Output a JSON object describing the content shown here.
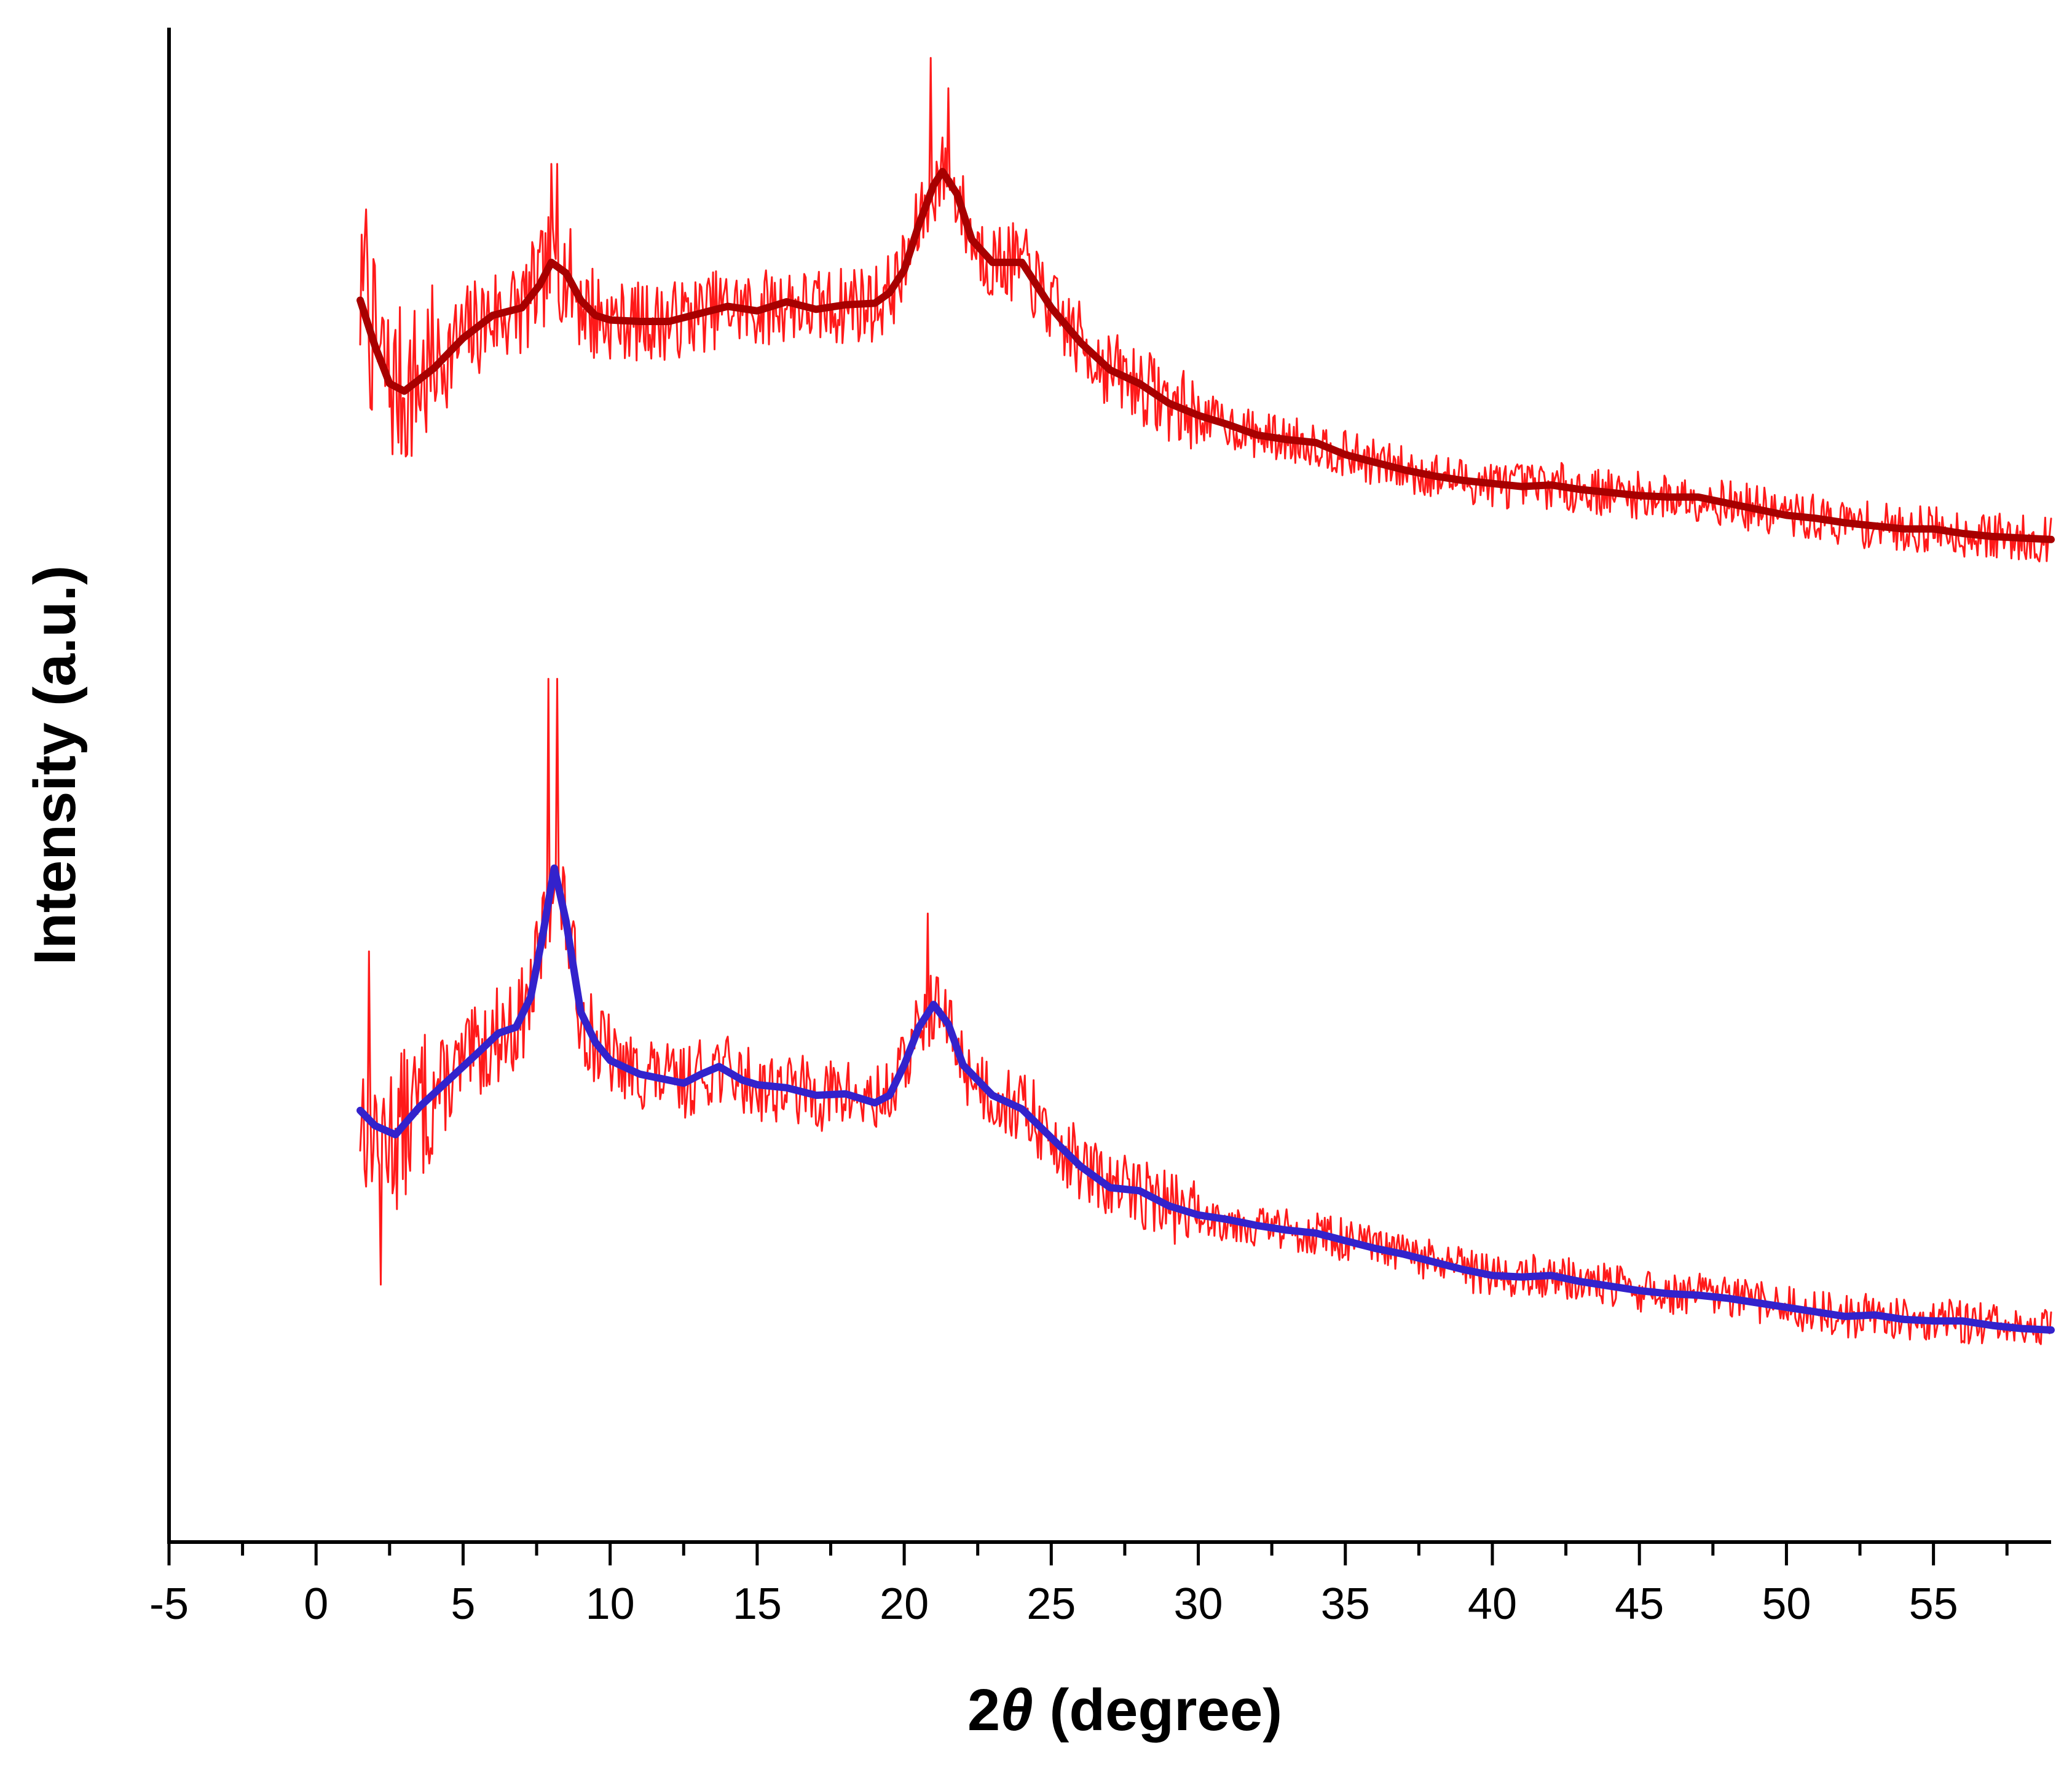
{
  "chart_data": {
    "type": "line",
    "title": "",
    "xlabel_prefix": "2",
    "xlabel_symbol": "θ",
    "xlabel_suffix": " (degree)",
    "ylabel": "Intensity (a.u.)",
    "xlim": [
      -5,
      59
    ],
    "ylim": [
      0,
      100
    ],
    "x_ticks": [
      -5,
      0,
      5,
      10,
      15,
      20,
      25,
      30,
      35,
      40,
      45,
      50,
      55
    ],
    "x_tick_labels": [
      "-5",
      "0",
      "5",
      "10",
      "15",
      "20",
      "25",
      "30",
      "35",
      "40",
      "45",
      "50",
      "55"
    ],
    "y_ticks_shown": false,
    "grid": false,
    "legend": "none",
    "colors": {
      "raw": "#ff1a1a",
      "upper_smooth": "#a80000",
      "lower_smooth": "#3322cc"
    },
    "series": [
      {
        "name": "upper-raw",
        "style": "raw",
        "x_start": 1.5,
        "x_end": 59,
        "noise": 3.5,
        "seed": 7,
        "spikes": [
          [
            1.7,
            88
          ],
          [
            8.0,
            91
          ],
          [
            8.2,
            91
          ],
          [
            20.9,
            98
          ],
          [
            21.5,
            96
          ],
          [
            18.3,
            84
          ],
          [
            42.1,
            70
          ]
        ],
        "points": [
          [
            1.5,
            82
          ],
          [
            2.0,
            79
          ],
          [
            2.5,
            76.5
          ],
          [
            3.0,
            76
          ],
          [
            4,
            77.5
          ],
          [
            5,
            79.5
          ],
          [
            6,
            81
          ],
          [
            7,
            81.5
          ],
          [
            7.6,
            83
          ],
          [
            8.0,
            84.5
          ],
          [
            8.5,
            83.8
          ],
          [
            9.0,
            82
          ],
          [
            9.5,
            81
          ],
          [
            10,
            80.7
          ],
          [
            11,
            80.6
          ],
          [
            12,
            80.6
          ],
          [
            13,
            81.1
          ],
          [
            14,
            81.6
          ],
          [
            15,
            81.3
          ],
          [
            16,
            81.9
          ],
          [
            17,
            81.4
          ],
          [
            18,
            81.7
          ],
          [
            19,
            81.8
          ],
          [
            19.5,
            82.5
          ],
          [
            20,
            84
          ],
          [
            20.5,
            87
          ],
          [
            21.0,
            89.6
          ],
          [
            21.3,
            90.5
          ],
          [
            21.8,
            89
          ],
          [
            22.3,
            86
          ],
          [
            23,
            84.5
          ],
          [
            24,
            84.5
          ],
          [
            25,
            81.5
          ],
          [
            26,
            79.2
          ],
          [
            27,
            77.4
          ],
          [
            28,
            76.5
          ],
          [
            29,
            75.2
          ],
          [
            30,
            74.4
          ],
          [
            31,
            73.8
          ],
          [
            32,
            73.1
          ],
          [
            33,
            72.8
          ],
          [
            34,
            72.6
          ],
          [
            35,
            71.8
          ],
          [
            36,
            71.3
          ],
          [
            37,
            70.8
          ],
          [
            38,
            70.4
          ],
          [
            39,
            70.1
          ],
          [
            40,
            69.9
          ],
          [
            41,
            69.7
          ],
          [
            42,
            69.8
          ],
          [
            43,
            69.5
          ],
          [
            44,
            69.3
          ],
          [
            45,
            69.1
          ],
          [
            46,
            69.0
          ],
          [
            47,
            69.0
          ],
          [
            48,
            68.6
          ],
          [
            49,
            68.2
          ],
          [
            50,
            67.8
          ],
          [
            51,
            67.6
          ],
          [
            52,
            67.3
          ],
          [
            53,
            67.1
          ],
          [
            54,
            66.9
          ],
          [
            55,
            66.9
          ],
          [
            56,
            66.6
          ],
          [
            57,
            66.4
          ],
          [
            58,
            66.3
          ],
          [
            59,
            66.2
          ]
        ]
      },
      {
        "name": "upper-smoothed",
        "style": "smooth",
        "points": [
          [
            1.5,
            82
          ],
          [
            2.0,
            79
          ],
          [
            2.5,
            76.5
          ],
          [
            3.0,
            76
          ],
          [
            4,
            77.5
          ],
          [
            5,
            79.5
          ],
          [
            6,
            81
          ],
          [
            7,
            81.5
          ],
          [
            7.6,
            83
          ],
          [
            8.0,
            84.5
          ],
          [
            8.5,
            83.8
          ],
          [
            9.0,
            82
          ],
          [
            9.5,
            81
          ],
          [
            10,
            80.7
          ],
          [
            11,
            80.6
          ],
          [
            12,
            80.6
          ],
          [
            13,
            81.1
          ],
          [
            14,
            81.6
          ],
          [
            15,
            81.3
          ],
          [
            16,
            81.9
          ],
          [
            17,
            81.4
          ],
          [
            18,
            81.7
          ],
          [
            19,
            81.8
          ],
          [
            19.5,
            82.5
          ],
          [
            20,
            84
          ],
          [
            20.5,
            87
          ],
          [
            21.0,
            89.6
          ],
          [
            21.3,
            90.5
          ],
          [
            21.8,
            89
          ],
          [
            22.3,
            86
          ],
          [
            23,
            84.5
          ],
          [
            24,
            84.5
          ],
          [
            25,
            81.5
          ],
          [
            26,
            79.2
          ],
          [
            27,
            77.4
          ],
          [
            28,
            76.5
          ],
          [
            29,
            75.2
          ],
          [
            30,
            74.4
          ],
          [
            31,
            73.8
          ],
          [
            32,
            73.1
          ],
          [
            33,
            72.8
          ],
          [
            34,
            72.6
          ],
          [
            35,
            71.8
          ],
          [
            36,
            71.3
          ],
          [
            37,
            70.8
          ],
          [
            38,
            70.4
          ],
          [
            39,
            70.1
          ],
          [
            40,
            69.9
          ],
          [
            41,
            69.7
          ],
          [
            42,
            69.8
          ],
          [
            43,
            69.5
          ],
          [
            44,
            69.3
          ],
          [
            45,
            69.1
          ],
          [
            46,
            69.0
          ],
          [
            47,
            69.0
          ],
          [
            48,
            68.6
          ],
          [
            49,
            68.2
          ],
          [
            50,
            67.8
          ],
          [
            51,
            67.6
          ],
          [
            52,
            67.3
          ],
          [
            53,
            67.1
          ],
          [
            54,
            66.9
          ],
          [
            55,
            66.9
          ],
          [
            56,
            66.6
          ],
          [
            57,
            66.4
          ],
          [
            58,
            66.3
          ],
          [
            59,
            66.2
          ]
        ]
      },
      {
        "name": "lower-raw",
        "style": "raw",
        "x_start": 1.5,
        "x_end": 59,
        "noise": 3.2,
        "seed": 13,
        "spikes": [
          [
            1.8,
            39
          ],
          [
            2.2,
            17
          ],
          [
            7.9,
            57
          ],
          [
            8.2,
            57
          ],
          [
            20.8,
            41.5
          ],
          [
            11.4,
            33
          ],
          [
            13.6,
            32.5
          ],
          [
            24.4,
            30.5
          ]
        ],
        "points": [
          [
            1.5,
            28.5
          ],
          [
            2.0,
            27.5
          ],
          [
            2.7,
            26.9
          ],
          [
            3.5,
            28.7
          ],
          [
            4.5,
            30.5
          ],
          [
            5.5,
            32.3
          ],
          [
            6.2,
            33.6
          ],
          [
            6.8,
            34
          ],
          [
            7.3,
            36
          ],
          [
            7.7,
            40
          ],
          [
            8.1,
            44.5
          ],
          [
            8.5,
            41
          ],
          [
            9.0,
            35
          ],
          [
            9.5,
            33
          ],
          [
            10,
            31.8
          ],
          [
            11,
            30.9
          ],
          [
            12,
            30.5
          ],
          [
            12.5,
            30.3
          ],
          [
            13.1,
            30.9
          ],
          [
            13.7,
            31.4
          ],
          [
            14.5,
            30.5
          ],
          [
            15,
            30.2
          ],
          [
            16,
            30.0
          ],
          [
            17,
            29.5
          ],
          [
            18,
            29.6
          ],
          [
            19,
            29.0
          ],
          [
            19.5,
            29.5
          ],
          [
            20,
            31.5
          ],
          [
            20.5,
            34
          ],
          [
            21.0,
            35.5
          ],
          [
            21.5,
            34.2
          ],
          [
            22,
            31.5
          ],
          [
            23,
            29.5
          ],
          [
            24,
            28.6
          ],
          [
            25,
            26.7
          ],
          [
            26,
            24.8
          ],
          [
            27,
            23.4
          ],
          [
            28,
            23.2
          ],
          [
            29,
            22.2
          ],
          [
            30,
            21.6
          ],
          [
            31,
            21.3
          ],
          [
            32,
            20.9
          ],
          [
            33,
            20.6
          ],
          [
            34,
            20.4
          ],
          [
            35,
            19.9
          ],
          [
            36,
            19.4
          ],
          [
            37,
            19.0
          ],
          [
            38,
            18.5
          ],
          [
            39,
            18.0
          ],
          [
            40,
            17.6
          ],
          [
            41,
            17.5
          ],
          [
            42,
            17.6
          ],
          [
            43,
            17.2
          ],
          [
            44,
            16.9
          ],
          [
            45,
            16.6
          ],
          [
            46,
            16.4
          ],
          [
            47,
            16.3
          ],
          [
            48,
            16.1
          ],
          [
            49,
            15.8
          ],
          [
            50,
            15.5
          ],
          [
            51,
            15.2
          ],
          [
            52,
            14.9
          ],
          [
            53,
            15.0
          ],
          [
            54,
            14.7
          ],
          [
            55,
            14.6
          ],
          [
            56,
            14.6
          ],
          [
            57,
            14.3
          ],
          [
            58,
            14.1
          ],
          [
            59,
            14.0
          ]
        ]
      },
      {
        "name": "lower-smoothed",
        "style": "smooth-blue",
        "points": [
          [
            1.5,
            28.5
          ],
          [
            2.0,
            27.5
          ],
          [
            2.7,
            26.9
          ],
          [
            3.5,
            28.7
          ],
          [
            4.5,
            30.5
          ],
          [
            5.5,
            32.3
          ],
          [
            6.2,
            33.6
          ],
          [
            6.8,
            34
          ],
          [
            7.3,
            36
          ],
          [
            7.7,
            40
          ],
          [
            8.1,
            44.5
          ],
          [
            8.5,
            41
          ],
          [
            9.0,
            35
          ],
          [
            9.5,
            33
          ],
          [
            10,
            31.8
          ],
          [
            11,
            30.9
          ],
          [
            12,
            30.5
          ],
          [
            12.5,
            30.3
          ],
          [
            13.1,
            30.9
          ],
          [
            13.7,
            31.4
          ],
          [
            14.5,
            30.5
          ],
          [
            15,
            30.2
          ],
          [
            16,
            30.0
          ],
          [
            17,
            29.5
          ],
          [
            18,
            29.6
          ],
          [
            19,
            29.0
          ],
          [
            19.5,
            29.5
          ],
          [
            20,
            31.5
          ],
          [
            20.5,
            34
          ],
          [
            21.0,
            35.5
          ],
          [
            21.5,
            34.2
          ],
          [
            22,
            31.5
          ],
          [
            23,
            29.5
          ],
          [
            24,
            28.6
          ],
          [
            25,
            26.7
          ],
          [
            26,
            24.8
          ],
          [
            27,
            23.4
          ],
          [
            28,
            23.2
          ],
          [
            29,
            22.2
          ],
          [
            30,
            21.6
          ],
          [
            31,
            21.3
          ],
          [
            32,
            20.9
          ],
          [
            33,
            20.6
          ],
          [
            34,
            20.4
          ],
          [
            35,
            19.9
          ],
          [
            36,
            19.4
          ],
          [
            37,
            19.0
          ],
          [
            38,
            18.5
          ],
          [
            39,
            18.0
          ],
          [
            40,
            17.6
          ],
          [
            41,
            17.5
          ],
          [
            42,
            17.6
          ],
          [
            43,
            17.2
          ],
          [
            44,
            16.9
          ],
          [
            45,
            16.6
          ],
          [
            46,
            16.4
          ],
          [
            47,
            16.3
          ],
          [
            48,
            16.1
          ],
          [
            49,
            15.8
          ],
          [
            50,
            15.5
          ],
          [
            51,
            15.2
          ],
          [
            52,
            14.9
          ],
          [
            53,
            15.0
          ],
          [
            54,
            14.7
          ],
          [
            55,
            14.6
          ],
          [
            56,
            14.6
          ],
          [
            57,
            14.3
          ],
          [
            58,
            14.1
          ],
          [
            59,
            14.0
          ]
        ]
      }
    ]
  }
}
